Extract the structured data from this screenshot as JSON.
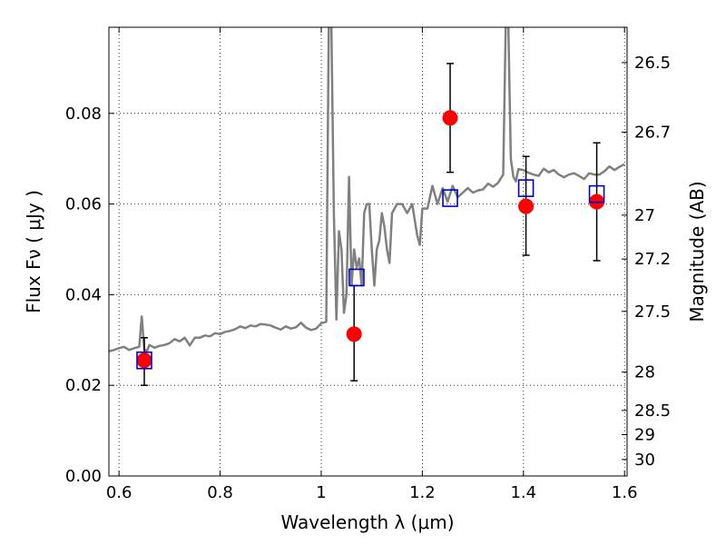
{
  "chart_data": {
    "type": "scatter",
    "xlabel": "Wavelength  λ (μm)",
    "ylabel": "Flux  Fν  ( μJy )",
    "ylabel_right": "Magnitude (AB)",
    "xlim": [
      0.58,
      1.605
    ],
    "ylim": [
      0.0,
      0.099
    ],
    "grid": true,
    "x_ticks": [
      {
        "value": 0.6,
        "label": "0.6"
      },
      {
        "value": 0.8,
        "label": "0.8"
      },
      {
        "value": 1.0,
        "label": "1"
      },
      {
        "value": 1.2,
        "label": "1.2"
      },
      {
        "value": 1.4,
        "label": "1.4"
      },
      {
        "value": 1.6,
        "label": "1.6"
      }
    ],
    "y_ticks": [
      {
        "value": 0.0,
        "label": "0.00"
      },
      {
        "value": 0.02,
        "label": "0.02"
      },
      {
        "value": 0.04,
        "label": "0.04"
      },
      {
        "value": 0.06,
        "label": "0.06"
      },
      {
        "value": 0.08,
        "label": "0.08"
      }
    ],
    "y2_ticks": [
      {
        "mag": 26.5,
        "label": "26.5"
      },
      {
        "mag": 26.7,
        "label": "26.7"
      },
      {
        "mag": 27.0,
        "label": "27"
      },
      {
        "mag": 27.2,
        "label": "27.2"
      },
      {
        "mag": 27.5,
        "label": "27.5"
      },
      {
        "mag": 28.0,
        "label": "28"
      },
      {
        "mag": 28.5,
        "label": "28.5"
      },
      {
        "mag": 29.0,
        "label": "29"
      },
      {
        "mag": 30.0,
        "label": "30"
      }
    ],
    "model_spectrum": {
      "color": "#808080",
      "x": [
        0.58,
        0.59,
        0.6,
        0.61,
        0.62,
        0.63,
        0.64,
        0.645,
        0.65,
        0.655,
        0.66,
        0.67,
        0.68,
        0.69,
        0.7,
        0.71,
        0.72,
        0.73,
        0.74,
        0.75,
        0.76,
        0.77,
        0.78,
        0.79,
        0.8,
        0.81,
        0.82,
        0.83,
        0.84,
        0.85,
        0.86,
        0.87,
        0.88,
        0.89,
        0.9,
        0.91,
        0.92,
        0.93,
        0.94,
        0.95,
        0.96,
        0.97,
        0.98,
        0.99,
        1.0,
        1.01,
        1.015,
        1.02,
        1.025,
        1.03,
        1.035,
        1.04,
        1.045,
        1.05,
        1.055,
        1.06,
        1.065,
        1.07,
        1.075,
        1.08,
        1.085,
        1.09,
        1.095,
        1.1,
        1.105,
        1.11,
        1.115,
        1.12,
        1.125,
        1.13,
        1.135,
        1.14,
        1.15,
        1.16,
        1.17,
        1.18,
        1.19,
        1.195,
        1.2,
        1.21,
        1.22,
        1.23,
        1.24,
        1.25,
        1.26,
        1.27,
        1.28,
        1.29,
        1.3,
        1.31,
        1.32,
        1.33,
        1.34,
        1.35,
        1.36,
        1.365,
        1.37,
        1.375,
        1.38,
        1.385,
        1.39,
        1.4,
        1.41,
        1.42,
        1.43,
        1.44,
        1.45,
        1.46,
        1.47,
        1.48,
        1.49,
        1.5,
        1.51,
        1.52,
        1.53,
        1.54,
        1.55,
        1.56,
        1.57,
        1.58,
        1.59,
        1.6
      ],
      "y": [
        0.0275,
        0.0278,
        0.0282,
        0.0285,
        0.0278,
        0.0282,
        0.0285,
        0.0352,
        0.028,
        0.0275,
        0.0289,
        0.0283,
        0.0287,
        0.0289,
        0.0293,
        0.0302,
        0.0297,
        0.0305,
        0.0288,
        0.0305,
        0.0305,
        0.031,
        0.0308,
        0.0315,
        0.0313,
        0.0318,
        0.032,
        0.0324,
        0.033,
        0.0326,
        0.0332,
        0.033,
        0.0335,
        0.0334,
        0.0332,
        0.0327,
        0.0323,
        0.033,
        0.0325,
        0.0328,
        0.0338,
        0.0327,
        0.0322,
        0.0325,
        0.0337,
        0.034,
        0.1,
        0.1,
        0.058,
        0.0345,
        0.054,
        0.05,
        0.036,
        0.04,
        0.066,
        0.042,
        0.05,
        0.046,
        0.048,
        0.042,
        0.058,
        0.06,
        0.06,
        0.05,
        0.042,
        0.05,
        0.052,
        0.058,
        0.055,
        0.05,
        0.047,
        0.058,
        0.06,
        0.06,
        0.058,
        0.06,
        0.053,
        0.051,
        0.059,
        0.059,
        0.064,
        0.06,
        0.0635,
        0.0605,
        0.064,
        0.0615,
        0.0625,
        0.0635,
        0.0625,
        0.063,
        0.0632,
        0.0645,
        0.0638,
        0.0647,
        0.0665,
        0.1,
        0.1,
        0.07,
        0.066,
        0.065,
        0.0677,
        0.0675,
        0.0669,
        0.0665,
        0.0662,
        0.0678,
        0.067,
        0.0675,
        0.0665,
        0.0659,
        0.0665,
        0.0668,
        0.0662,
        0.0655,
        0.0668,
        0.0665,
        0.0665,
        0.0672,
        0.0683,
        0.0675,
        0.0682,
        0.0688
      ]
    },
    "observed": {
      "color": "#ff0000",
      "points": [
        {
          "x": 0.65,
          "y": 0.0255,
          "err_low": 0.0055,
          "err_high": 0.005
        },
        {
          "x": 1.065,
          "y": 0.0313,
          "err_low": 0.0103,
          "err_high": 0.0107
        },
        {
          "x": 1.255,
          "y": 0.079,
          "err_low": 0.012,
          "err_high": 0.012
        },
        {
          "x": 1.405,
          "y": 0.0595,
          "err_low": 0.0108,
          "err_high": 0.011
        },
        {
          "x": 1.545,
          "y": 0.0605,
          "err_low": 0.013,
          "err_high": 0.013
        }
      ]
    },
    "model_photometry": {
      "color": "#0000cc",
      "points": [
        {
          "x": 0.65,
          "y": 0.0255
        },
        {
          "x": 1.07,
          "y": 0.0438
        },
        {
          "x": 1.255,
          "y": 0.0613
        },
        {
          "x": 1.405,
          "y": 0.0635
        },
        {
          "x": 1.545,
          "y": 0.0622
        }
      ]
    }
  }
}
